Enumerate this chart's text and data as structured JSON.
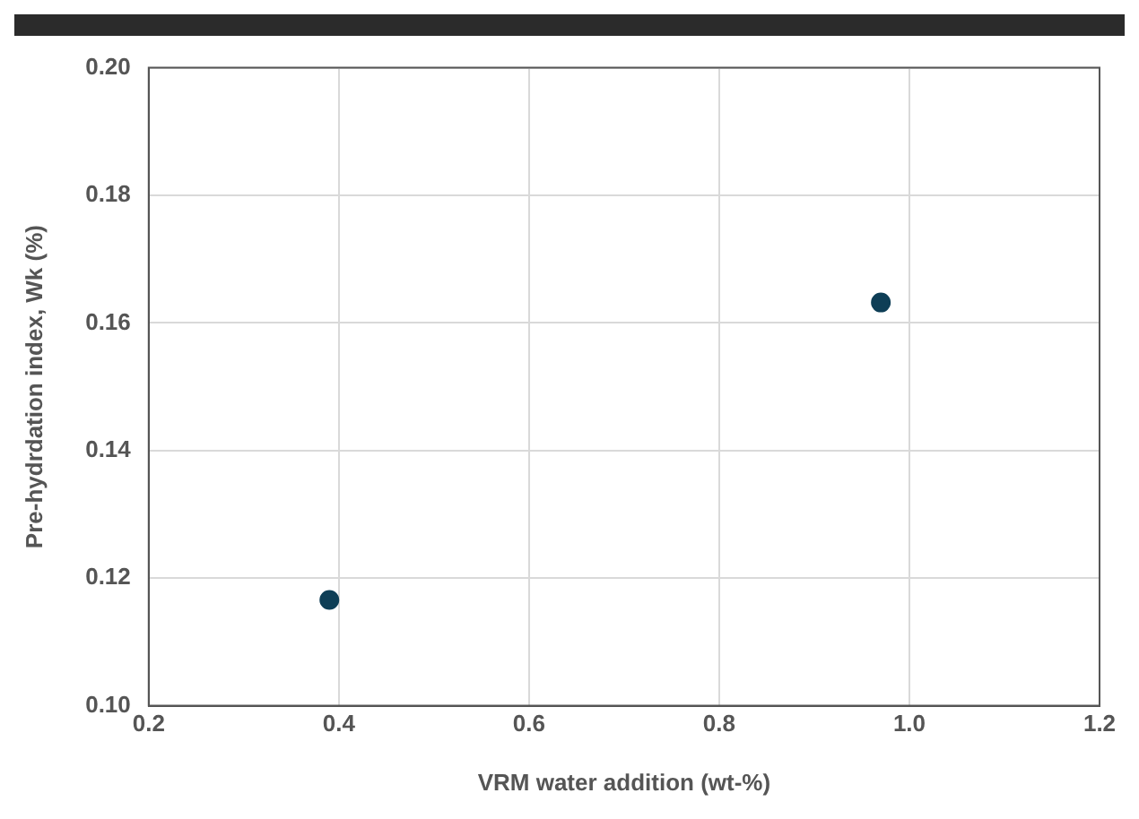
{
  "chart_data": {
    "type": "scatter",
    "xlabel": "VRM water addition (wt-%)",
    "ylabel": "Pre-hydrdation index, Wk (%)",
    "x": [
      0.39,
      0.97
    ],
    "series": [
      {
        "color": "#0e3e56",
        "values": [
          0.1166,
          0.1632
        ]
      }
    ],
    "xlim": [
      0.2,
      1.2
    ],
    "xticks": [
      {
        "value": 0.2,
        "label": "0.2"
      },
      {
        "value": 0.4,
        "label": "0.4"
      },
      {
        "value": 0.6,
        "label": "0.6"
      },
      {
        "value": 0.8,
        "label": "0.8"
      },
      {
        "value": 1.0,
        "label": "1.0"
      },
      {
        "value": 1.2,
        "label": "1.2"
      }
    ],
    "ylim": [
      0.1,
      0.2
    ],
    "yticks": [
      {
        "value": 0.1,
        "label": "0.10"
      },
      {
        "value": 0.12,
        "label": "0.12"
      },
      {
        "value": 0.14,
        "label": "0.14"
      },
      {
        "value": 0.16,
        "label": "0.16"
      },
      {
        "value": 0.18,
        "label": "0.18"
      },
      {
        "value": 0.2,
        "label": "0.20"
      }
    ],
    "grid": true,
    "marker": "circle",
    "legend": false
  }
}
